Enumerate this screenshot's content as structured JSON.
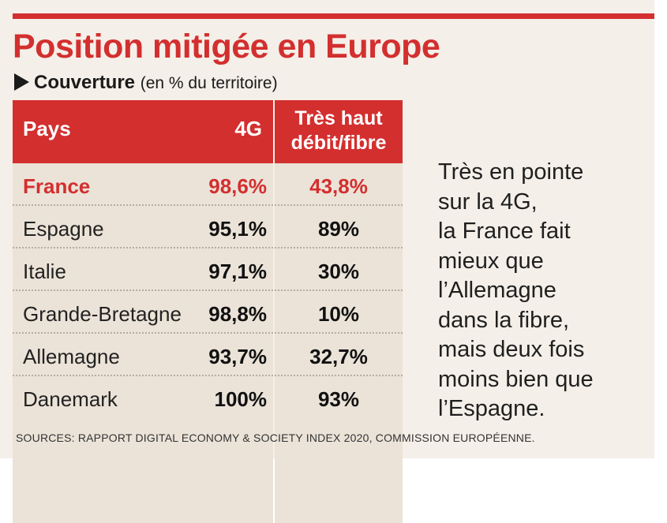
{
  "title": "Position mitigée en Europe",
  "subtitle": {
    "label": "Couverture",
    "unit": "(en % du territoire)"
  },
  "colors": {
    "accent": "#d32f2f",
    "panel": "#f4efe8",
    "cell": "#ebe3d8",
    "text": "#1a1a1a"
  },
  "chart_data": {
    "type": "table",
    "title": "Position mitigée en Europe",
    "subtitle": "Couverture (en % du territoire)",
    "columns": [
      "Pays",
      "4G",
      "Très haut débit/fibre"
    ],
    "rows": [
      {
        "country": "France",
        "g4": "98,6%",
        "fibre": "43,8%",
        "highlight": true
      },
      {
        "country": "Espagne",
        "g4": "95,1%",
        "fibre": "89%",
        "highlight": false
      },
      {
        "country": "Italie",
        "g4": "97,1%",
        "fibre": "30%",
        "highlight": false
      },
      {
        "country": "Grande-Bretagne",
        "g4": "98,8%",
        "fibre": "10%",
        "highlight": false
      },
      {
        "country": "Allemagne",
        "g4": "93,7%",
        "fibre": "32,7%",
        "highlight": false
      },
      {
        "country": "Danemark",
        "g4": "100%",
        "fibre": "93%",
        "highlight": false
      }
    ]
  },
  "table": {
    "header": {
      "pays": "Pays",
      "g4": "4G",
      "fibre_line1": "Très haut",
      "fibre_line2": "débit/fibre"
    }
  },
  "annotation": {
    "lines": [
      "Très en pointe",
      "sur la 4G,",
      "la France fait",
      "mieux que",
      "l’Allemagne",
      "dans la fibre,",
      "mais deux fois",
      "moins bien que",
      "l’Espagne."
    ]
  },
  "source": "SOURCES: RAPPORT DIGITAL ECONOMY & SOCIETY INDEX 2020, COMMISSION EUROPÉENNE."
}
